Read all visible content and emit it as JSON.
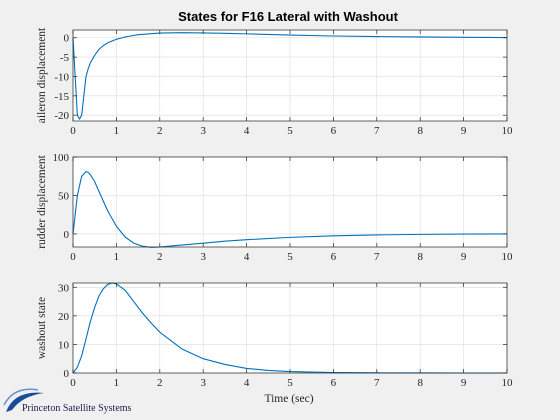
{
  "figure": {
    "title": "States for F16 Lateral with Washout",
    "xlabel": "Time (sec)",
    "logo_text": "Princeton Satellite Systems",
    "line_color": "#0072bd",
    "grid_color": "#dcdcdc",
    "axes_color": "#262626",
    "background": "#f0f0f0",
    "plot_background": "#ffffff"
  },
  "chart_data": [
    {
      "type": "line",
      "ylabel": "aileron displacement",
      "xlim": [
        0,
        10
      ],
      "ylim": [
        -21.5,
        2
      ],
      "x_ticks": [
        0,
        1,
        2,
        3,
        4,
        5,
        6,
        7,
        8,
        9,
        10
      ],
      "y_ticks": [
        -20,
        -15,
        -10,
        -5,
        0
      ],
      "grid": true,
      "series": [
        {
          "x": [
            0,
            0.05,
            0.1,
            0.15,
            0.2,
            0.25,
            0.3,
            0.35,
            0.4,
            0.5,
            0.6,
            0.7,
            0.8,
            1.0,
            1.2,
            1.5,
            2.0,
            2.5,
            3.0,
            3.5,
            4.0,
            5.0,
            6.0,
            7.0,
            8.0,
            9.0,
            10.0
          ],
          "y": [
            0,
            -10,
            -20,
            -21,
            -20,
            -15,
            -10,
            -8,
            -6.5,
            -4.5,
            -3,
            -2,
            -1.3,
            -0.4,
            0.2,
            0.8,
            1.2,
            1.3,
            1.25,
            1.15,
            1.0,
            0.7,
            0.45,
            0.3,
            0.2,
            0.12,
            0.05
          ]
        }
      ]
    },
    {
      "type": "line",
      "ylabel": "rudder displacement",
      "xlim": [
        0,
        10
      ],
      "ylim": [
        -17,
        100
      ],
      "x_ticks": [
        0,
        1,
        2,
        3,
        4,
        5,
        6,
        7,
        8,
        9,
        10
      ],
      "y_ticks": [
        0,
        50,
        100
      ],
      "grid": true,
      "series": [
        {
          "x": [
            0,
            0.05,
            0.1,
            0.2,
            0.3,
            0.35,
            0.4,
            0.5,
            0.6,
            0.8,
            1.0,
            1.2,
            1.4,
            1.6,
            1.8,
            2.0,
            2.3,
            2.6,
            3.0,
            3.5,
            4.0,
            5.0,
            6.0,
            7.0,
            8.0,
            9.0,
            10.0
          ],
          "y": [
            0,
            25,
            50,
            75,
            81,
            80,
            77,
            68,
            55,
            30,
            10,
            -4,
            -12,
            -16,
            -17.5,
            -17,
            -15.5,
            -14,
            -12,
            -9.5,
            -7.5,
            -4.5,
            -2.5,
            -1.3,
            -0.6,
            -0.2,
            0
          ]
        }
      ]
    },
    {
      "type": "line",
      "ylabel": "washout state",
      "xlim": [
        0,
        10
      ],
      "ylim": [
        0,
        31.5
      ],
      "x_ticks": [
        0,
        1,
        2,
        3,
        4,
        5,
        6,
        7,
        8,
        9,
        10
      ],
      "y_ticks": [
        0,
        10,
        20,
        30
      ],
      "grid": true,
      "series": [
        {
          "x": [
            0,
            0.1,
            0.2,
            0.3,
            0.4,
            0.5,
            0.6,
            0.7,
            0.8,
            0.9,
            1.0,
            1.2,
            1.4,
            1.6,
            1.8,
            2.0,
            2.5,
            3.0,
            3.5,
            4.0,
            4.5,
            5.0,
            6.0,
            7.0,
            8.0,
            9.0,
            10.0
          ],
          "y": [
            0,
            2,
            6,
            12,
            18,
            23,
            27,
            29.5,
            31,
            31.5,
            31.2,
            29,
            25,
            21,
            17.5,
            14.3,
            8.5,
            5,
            3,
            1.6,
            0.9,
            0.5,
            0.15,
            0.05,
            0.02,
            0,
            0
          ]
        }
      ]
    }
  ]
}
